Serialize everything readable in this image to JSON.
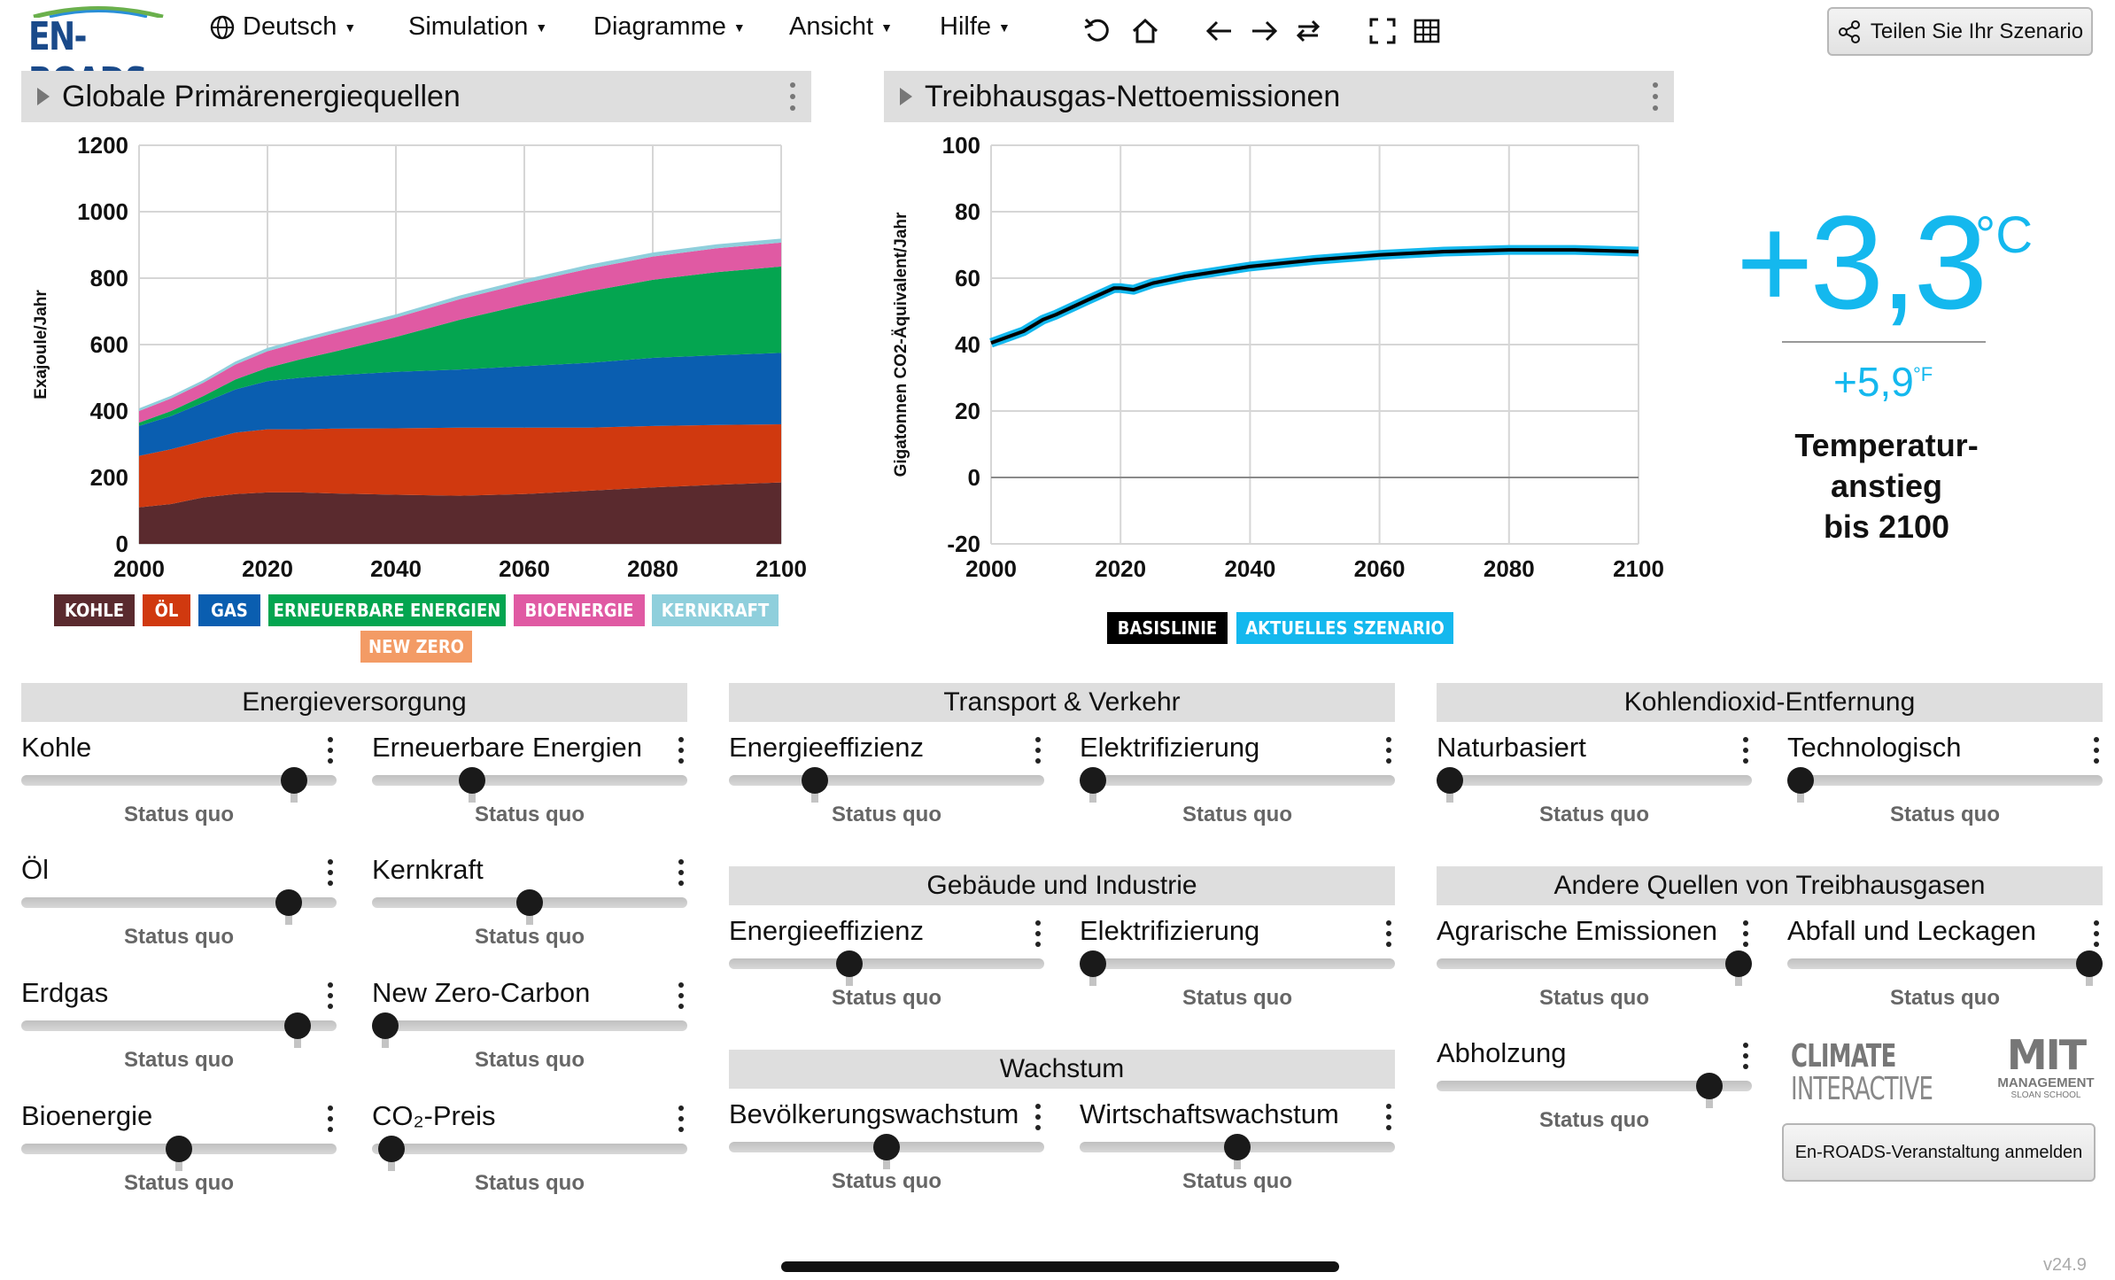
{
  "app": {
    "logo": "EN-ROADS",
    "menus": [
      "Deutsch",
      "Simulation",
      "Diagramme",
      "Ansicht",
      "Hilfe"
    ],
    "share_label": "Teilen Sie Ihr Szenario",
    "version": "v24.9",
    "event_button": "En-ROADS-Veranstaltung anmelden"
  },
  "colors": {
    "kohle": "#5a2a2e",
    "oel": "#d0390f",
    "gas": "#0a5eb0",
    "erneuerbare": "#04a550",
    "bioenergie": "#e05aa3",
    "kernkraft": "#8fcfdc",
    "newzero": "#f39b65",
    "baseline": "#000000",
    "scenario": "#14b8ee"
  },
  "chart_data": [
    {
      "type": "area",
      "title": "Globale Primärenergiequellen",
      "ylabel": "Exajoule/Jahr",
      "xlabel": "",
      "xlim": [
        2000,
        2100
      ],
      "ylim": [
        0,
        1200
      ],
      "xticks": [
        2000,
        2020,
        2040,
        2060,
        2080,
        2100
      ],
      "yticks": [
        0,
        200,
        400,
        600,
        800,
        1000,
        1200
      ],
      "x": [
        2000,
        2005,
        2010,
        2015,
        2020,
        2025,
        2030,
        2040,
        2050,
        2060,
        2070,
        2080,
        2090,
        2100
      ],
      "series": [
        {
          "name": "KOHLE",
          "values": [
            110,
            120,
            140,
            150,
            155,
            155,
            152,
            148,
            145,
            150,
            160,
            170,
            178,
            185
          ]
        },
        {
          "name": "ÖL",
          "values": [
            155,
            165,
            170,
            185,
            190,
            190,
            195,
            200,
            205,
            200,
            190,
            185,
            180,
            175
          ]
        },
        {
          "name": "GAS",
          "values": [
            90,
            100,
            115,
            130,
            145,
            155,
            160,
            170,
            175,
            185,
            195,
            205,
            210,
            215
          ]
        },
        {
          "name": "ERNEUERBARE ENERGIEN",
          "values": [
            10,
            15,
            20,
            30,
            40,
            55,
            70,
            105,
            150,
            185,
            215,
            235,
            250,
            260
          ]
        },
        {
          "name": "BIOENERGIE",
          "values": [
            35,
            38,
            40,
            45,
            50,
            52,
            55,
            58,
            62,
            65,
            68,
            70,
            72,
            72
          ]
        },
        {
          "name": "KERNKRAFT",
          "values": [
            8,
            8,
            8,
            9,
            10,
            10,
            10,
            10,
            11,
            11,
            12,
            12,
            12,
            12
          ]
        },
        {
          "name": "NEW ZERO",
          "values": [
            0,
            0,
            0,
            0,
            0,
            0,
            0,
            0,
            0,
            0,
            0,
            0,
            0,
            0
          ]
        }
      ]
    },
    {
      "type": "line",
      "title": "Treibhausgas-Nettoemissionen",
      "ylabel": "Gigatonnen CO2-Äquivalent/Jahr",
      "xlabel": "",
      "xlim": [
        2000,
        2100
      ],
      "ylim": [
        -20,
        100
      ],
      "xticks": [
        2000,
        2020,
        2040,
        2060,
        2080,
        2100
      ],
      "yticks": [
        -20,
        0,
        20,
        40,
        60,
        80,
        100
      ],
      "x": [
        2000,
        2005,
        2008,
        2010,
        2015,
        2019,
        2020,
        2022,
        2025,
        2030,
        2040,
        2050,
        2060,
        2070,
        2080,
        2090,
        2100
      ],
      "series": [
        {
          "name": "BASISLINIE",
          "values": [
            40.5,
            44,
            47.5,
            49,
            53.5,
            57,
            57,
            56.5,
            58.5,
            60.5,
            63.5,
            65.5,
            67,
            68,
            68.5,
            68.5,
            68
          ]
        },
        {
          "name": "AKTUELLES SZENARIO",
          "values": [
            40.5,
            44,
            47.5,
            49,
            53.5,
            57,
            57,
            56.5,
            58.5,
            60.5,
            63.5,
            65.5,
            67,
            68,
            68.5,
            68.5,
            68
          ]
        }
      ]
    }
  ],
  "temperature": {
    "celsius": "+3,3",
    "celsius_unit": "°C",
    "fahrenheit": "+5,9",
    "fahrenheit_unit": "°F",
    "label_line1": "Temperatur-",
    "label_line2": "anstieg",
    "label_line3": "bis 2100"
  },
  "sections": {
    "energie": "Energieversorgung",
    "transport": "Transport & Verkehr",
    "co2removal": "Kohlendioxid-Entfernung",
    "gebaeude": "Gebäude und Industrie",
    "andere": "Andere Quellen von Treibhausgasen",
    "wachstum": "Wachstum"
  },
  "sliders": {
    "status": "Status quo",
    "kohle": {
      "label": "Kohle",
      "level": 0.9
    },
    "erneuerbare": {
      "label": "Erneuerbare Energien",
      "level": 0.3
    },
    "oel": {
      "label": "Öl",
      "level": 0.88
    },
    "kernkraft": {
      "label": "Kernkraft",
      "level": 0.5
    },
    "erdgas": {
      "label": "Erdgas",
      "level": 0.91
    },
    "newzero": {
      "label": "New Zero-Carbon",
      "level": 0.0
    },
    "bioenergie": {
      "label": "Bioenergie",
      "level": 0.5
    },
    "co2preis": {
      "label": "CO₂-Preis",
      "level": 0.02
    },
    "t_effizienz": {
      "label": "Energieeffizienz",
      "level": 0.25
    },
    "t_elektro": {
      "label": "Elektrifizierung",
      "level": 0.0
    },
    "natur": {
      "label": "Naturbasiert",
      "level": 0.0
    },
    "techno": {
      "label": "Technologisch",
      "level": 0.0
    },
    "g_effizienz": {
      "label": "Energieeffizienz",
      "level": 0.37
    },
    "g_elektro": {
      "label": "Elektrifizierung",
      "level": 0.0
    },
    "agrar": {
      "label": "Agrarische Emissionen",
      "level": 1.0
    },
    "abfall": {
      "label": "Abfall und Leckagen",
      "level": 1.0
    },
    "abholzung": {
      "label": "Abholzung",
      "level": 0.9
    },
    "bevoelkerung": {
      "label": "Bevölkerungswachstum",
      "level": 0.5
    },
    "wirtschaft": {
      "label": "Wirtschaftswachstum",
      "level": 0.5
    }
  },
  "logos": {
    "climate_line1": "CLIMATE",
    "climate_line2": "INTERACTIVE",
    "mit_line1": "MIT",
    "mit_line2": "MANAGEMENT",
    "mit_line3": "SLOAN SCHOOL"
  }
}
